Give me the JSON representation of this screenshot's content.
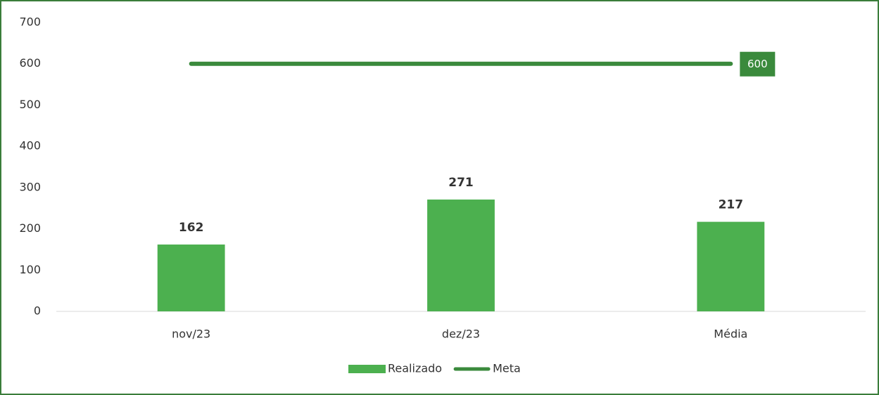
{
  "chart_data": {
    "type": "bar_line",
    "categories": [
      "nov/23",
      "dez/23",
      "Média"
    ],
    "series": [
      {
        "name": "Realizado",
        "type": "bar",
        "color": "#4cb04f",
        "values": [
          162,
          271,
          217
        ],
        "data_labels": "all"
      },
      {
        "name": "Meta",
        "type": "line",
        "color": "#3a8a3c",
        "values": [
          600,
          600,
          600
        ],
        "data_labels": "last"
      }
    ],
    "ylim": [
      0,
      700
    ],
    "yticks": [
      0,
      100,
      200,
      300,
      400,
      500,
      600,
      700
    ],
    "grid": false,
    "legend": "bottom"
  }
}
